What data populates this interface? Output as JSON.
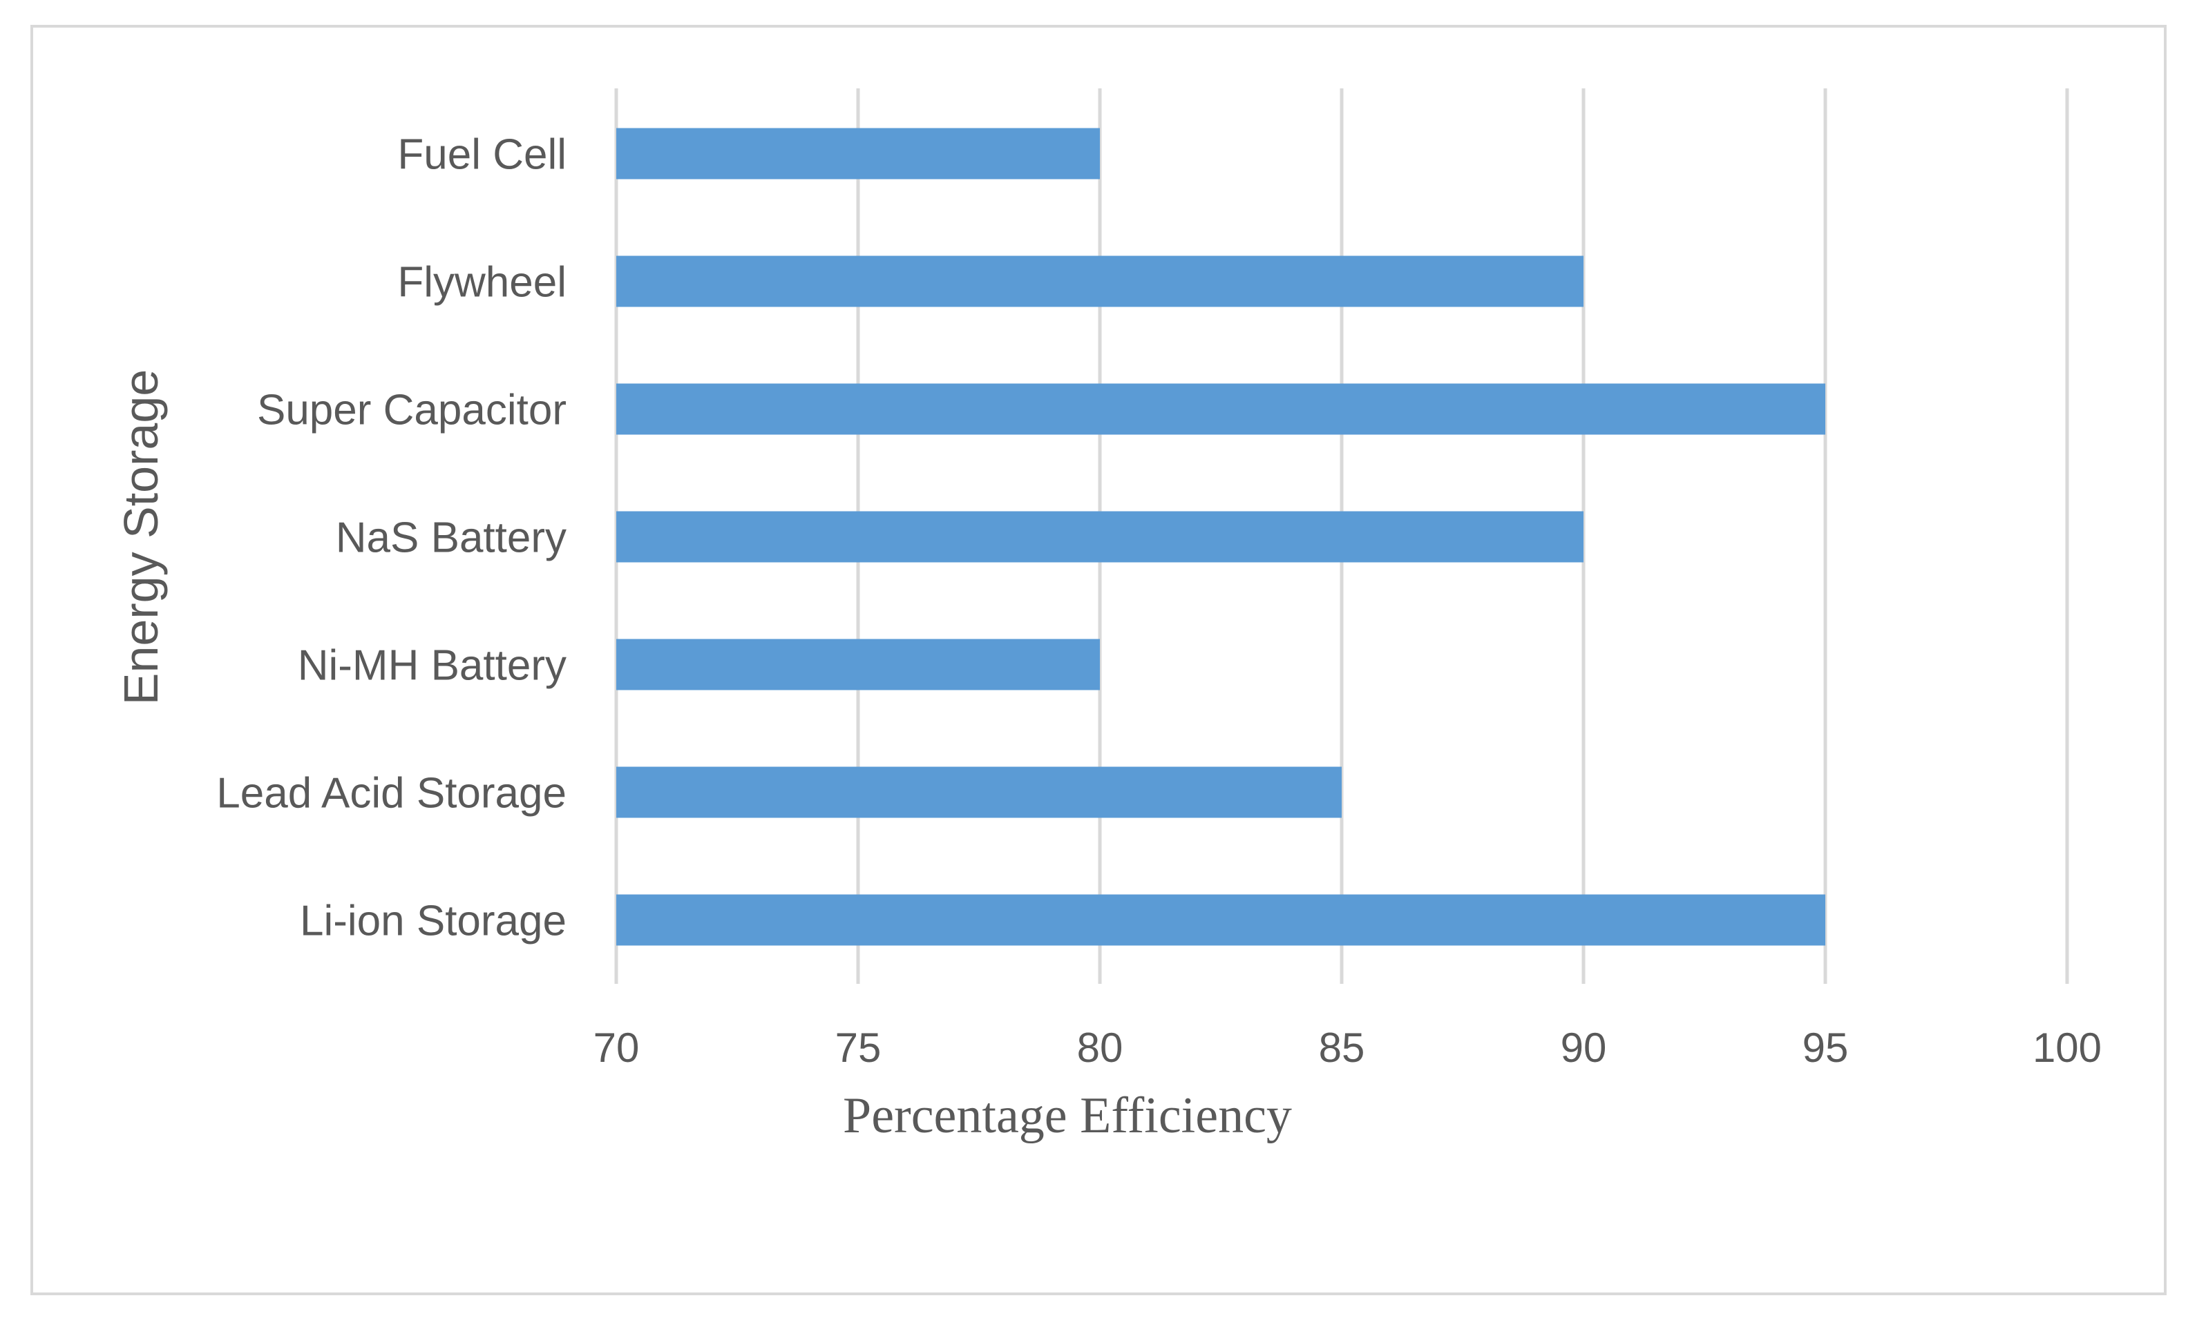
{
  "chart_data": {
    "type": "bar",
    "orientation": "horizontal",
    "categories": [
      "Fuel Cell",
      "Flywheel",
      "Super Capacitor",
      "NaS Battery",
      "Ni-MH Battery",
      "Lead Acid Storage",
      "Li-ion Storage"
    ],
    "values": [
      80,
      90,
      95,
      90,
      80,
      85,
      95
    ],
    "xlabel": "Percentage Efficiency",
    "ylabel": "Energy Storage",
    "xlim": [
      70,
      100
    ],
    "xticks": [
      70,
      75,
      80,
      85,
      90,
      95,
      100
    ],
    "xtick_labels": [
      "70",
      "75",
      "80",
      "85",
      "90",
      "95",
      "100"
    ],
    "grid": true,
    "bar_color": "#5b9bd5",
    "grid_color": "#d9d9d9"
  }
}
